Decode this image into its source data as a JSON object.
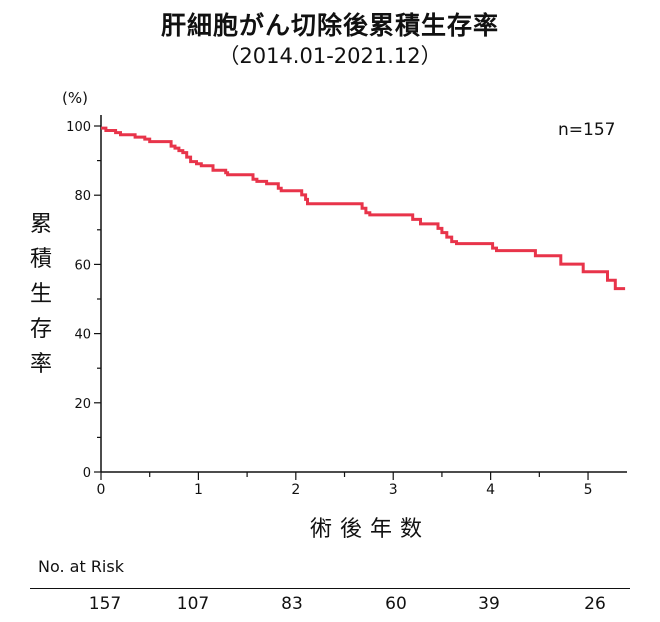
{
  "title": "肝細胞がん切除後累積生存率",
  "subtitle": "（2014.01-2021.12）",
  "chart_data": {
    "type": "line",
    "title": "肝細胞がん切除後累積生存率",
    "subtitle": "（2014.01-2021.12）",
    "xlabel": "術後年数",
    "ylabel": "累積生存率",
    "y_unit": "(%)",
    "xlim": [
      0,
      5.4
    ],
    "ylim": [
      0,
      100
    ],
    "x_ticks": [
      0,
      1,
      2,
      3,
      4,
      5
    ],
    "y_ticks": [
      0,
      20,
      40,
      60,
      80,
      100
    ],
    "annotation": "n=157",
    "line_color": "#e8344a",
    "steps": [
      [
        0,
        99.4
      ],
      [
        0.05,
        98.7
      ],
      [
        0.15,
        98.1
      ],
      [
        0.2,
        97.5
      ],
      [
        0.35,
        96.8
      ],
      [
        0.45,
        96.2
      ],
      [
        0.5,
        95.5
      ],
      [
        0.72,
        94.2
      ],
      [
        0.76,
        93.6
      ],
      [
        0.8,
        92.9
      ],
      [
        0.84,
        92.3
      ],
      [
        0.88,
        91.0
      ],
      [
        0.92,
        89.7
      ],
      [
        0.98,
        89.1
      ],
      [
        1.03,
        88.5
      ],
      [
        1.15,
        87.2
      ],
      [
        1.28,
        86.5
      ],
      [
        1.3,
        85.9
      ],
      [
        1.56,
        84.6
      ],
      [
        1.6,
        84.0
      ],
      [
        1.7,
        83.3
      ],
      [
        1.82,
        82.0
      ],
      [
        1.85,
        81.3
      ],
      [
        2.06,
        80.1
      ],
      [
        2.1,
        78.8
      ],
      [
        2.12,
        77.5
      ],
      [
        2.68,
        76.2
      ],
      [
        2.72,
        74.9
      ],
      [
        2.76,
        74.3
      ],
      [
        3.2,
        73.0
      ],
      [
        3.28,
        71.7
      ],
      [
        3.46,
        70.4
      ],
      [
        3.5,
        69.2
      ],
      [
        3.55,
        67.9
      ],
      [
        3.6,
        66.6
      ],
      [
        3.65,
        66.0
      ],
      [
        4.02,
        64.7
      ],
      [
        4.06,
        64.0
      ],
      [
        4.46,
        62.5
      ],
      [
        4.72,
        60.1
      ],
      [
        4.95,
        57.9
      ],
      [
        5.2,
        55.4
      ],
      [
        5.28,
        53.0
      ],
      [
        5.38,
        53.0
      ]
    ]
  },
  "risk_table": {
    "title": "No. at Risk",
    "values": [
      "157",
      "107",
      "83",
      "60",
      "39",
      "26"
    ]
  }
}
